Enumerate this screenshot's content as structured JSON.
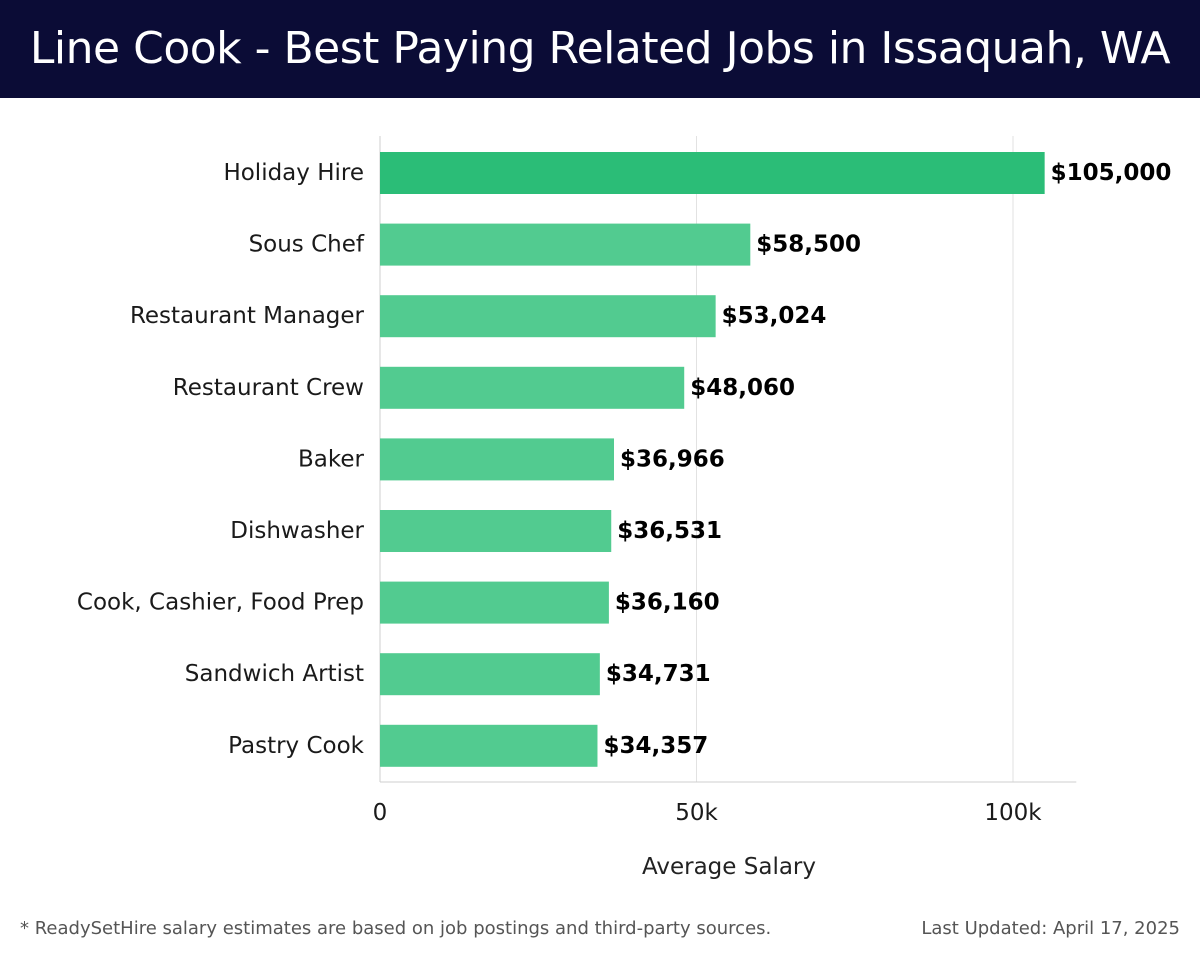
{
  "header": {
    "title": "Line Cook - Best Paying Related Jobs in Issaquah, WA"
  },
  "footer": {
    "note": "* ReadySetHire salary estimates are based on job postings and third-party sources.",
    "updated": "Last Updated: April 17, 2025"
  },
  "colors": {
    "header_bg": "#0b0c36",
    "top_bar": "#2bbd77",
    "bar": "#52cb90",
    "grid": "#e2e2e2"
  },
  "chart_data": {
    "type": "bar",
    "orientation": "horizontal",
    "title": "Line Cook - Best Paying Related Jobs in Issaquah, WA",
    "xlabel": "Average Salary",
    "ylabel": "",
    "categories": [
      "Holiday Hire",
      "Sous Chef",
      "Restaurant Manager",
      "Restaurant Crew",
      "Baker",
      "Dishwasher",
      "Cook, Cashier, Food Prep",
      "Sandwich Artist",
      "Pastry Cook"
    ],
    "values": [
      105000,
      58500,
      53024,
      48060,
      36966,
      36531,
      36160,
      34731,
      34357
    ],
    "value_labels": [
      "$105,000",
      "$58,500",
      "$53,024",
      "$48,060",
      "$36,966",
      "$36,531",
      "$36,160",
      "$34,731",
      "$34,357"
    ],
    "xlim": [
      0,
      110000
    ],
    "xticks": [
      0,
      50000,
      100000
    ],
    "xtick_labels": [
      "0",
      "50k",
      "100k"
    ],
    "grid": true,
    "legend": "none"
  }
}
